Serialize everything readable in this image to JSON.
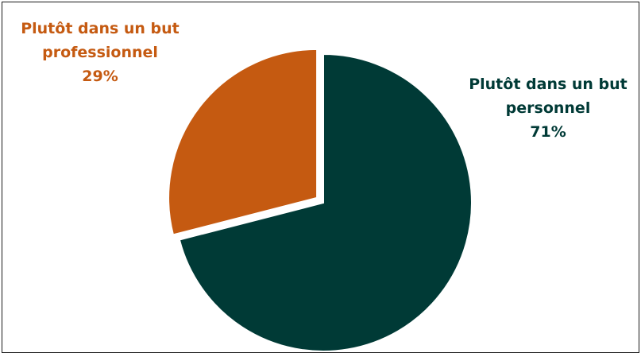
{
  "chart_data": {
    "type": "pie",
    "title": "",
    "slices": [
      {
        "label_line1": "Plutôt dans un but",
        "label_line2": "personnel",
        "value_label": "71%",
        "value": 71,
        "color": "#003a36"
      },
      {
        "label_line1": "Plutôt dans un but",
        "label_line2": "professionnel",
        "value_label": "29%",
        "value": 29,
        "color": "#c55a11"
      }
    ],
    "exploded_slice": "professionnel",
    "legend": "none"
  }
}
